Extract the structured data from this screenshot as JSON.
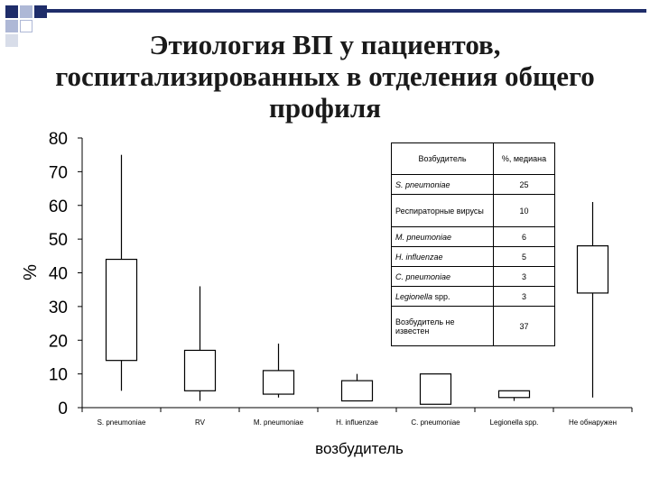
{
  "slide": {
    "title": "Этиология ВП у пациентов, госпитализированных в отделения общего профиля",
    "decor_color": "#1f2d6a"
  },
  "chart_data": {
    "type": "boxplot",
    "ylabel": "%",
    "xlabel": "возбудитель",
    "ylim": [
      0,
      80
    ],
    "yticks": [
      0,
      10,
      20,
      30,
      40,
      50,
      60,
      70,
      80
    ],
    "grid": false,
    "categories": [
      "S. pneumoniae",
      "RV",
      "M. pneumoniae",
      "H. influenzae",
      "C. pneumoniae",
      "Legionella spp.",
      "Не обнаружен"
    ],
    "series": [
      {
        "category": "S. pneumoniae",
        "min": 5,
        "q1": 14,
        "q3": 44,
        "max": 75
      },
      {
        "category": "RV",
        "min": 2,
        "q1": 5,
        "q3": 17,
        "max": 36
      },
      {
        "category": "M. pneumoniae",
        "min": 3,
        "q1": 4,
        "q3": 11,
        "max": 19
      },
      {
        "category": "H. influenzae",
        "min": 2,
        "q1": 2,
        "q3": 8,
        "max": 10
      },
      {
        "category": "C. pneumoniae",
        "min": 1,
        "q1": 1,
        "q3": 10,
        "max": 10
      },
      {
        "category": "Legionella spp.",
        "min": 2,
        "q1": 3,
        "q3": 5,
        "max": 5
      },
      {
        "category": "Не обнаружен",
        "min": 3,
        "q1": 34,
        "q3": 48,
        "max": 61
      }
    ],
    "table": {
      "header": [
        "Возбудитель",
        "%, медиана"
      ],
      "rows": [
        {
          "name": "S. pneumoniae",
          "value": "25",
          "italic": true
        },
        {
          "name": "Респираторные вирусы",
          "value": "10",
          "italic": false
        },
        {
          "name": "M. pneumoniae",
          "value": "6",
          "italic": true
        },
        {
          "name": "H. influenzae",
          "value": "5",
          "italic": true
        },
        {
          "name": "C. pneumoniae",
          "value": "3",
          "italic": true
        },
        {
          "name": "Legionella spp.",
          "value": "3",
          "italic": false
        },
        {
          "name": "Возбудитель не известен",
          "value": "37",
          "italic": false
        }
      ]
    }
  }
}
